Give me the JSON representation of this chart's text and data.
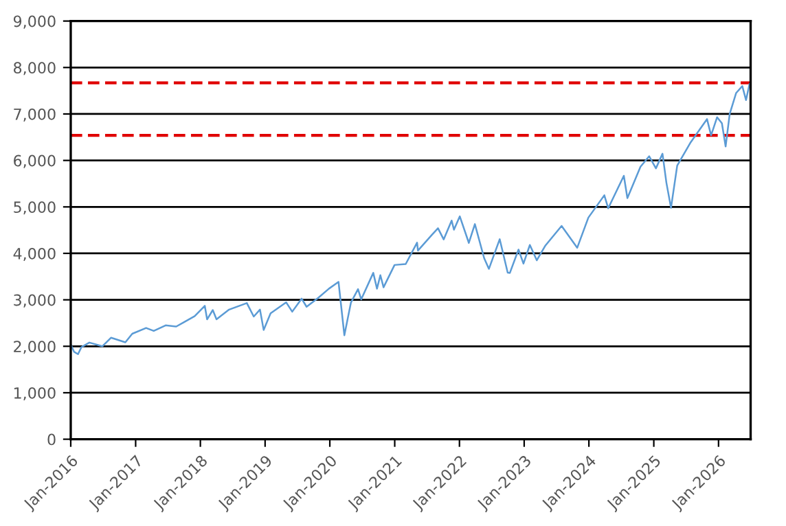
{
  "chart_data": {
    "type": "line",
    "x": [
      "2016-01-01",
      "2016-01-20",
      "2016-02-11",
      "2016-03-01",
      "2016-04-15",
      "2016-06-27",
      "2016-08-15",
      "2016-11-04",
      "2016-12-13",
      "2017-03-01",
      "2017-04-13",
      "2017-06-19",
      "2017-08-18",
      "2017-10-01",
      "2017-11-30",
      "2018-01-26",
      "2018-02-08",
      "2018-03-12",
      "2018-04-02",
      "2018-06-12",
      "2018-09-20",
      "2018-10-29",
      "2018-12-03",
      "2018-12-24",
      "2019-02-01",
      "2019-04-30",
      "2019-06-03",
      "2019-07-26",
      "2019-08-23",
      "2019-10-30",
      "2019-12-27",
      "2020-02-19",
      "2020-03-23",
      "2020-04-29",
      "2020-06-08",
      "2020-06-26",
      "2020-09-02",
      "2020-09-23",
      "2020-10-12",
      "2020-10-30",
      "2020-12-31",
      "2021-03-04",
      "2021-05-07",
      "2021-05-12",
      "2021-07-30",
      "2021-09-02",
      "2021-10-04",
      "2021-11-18",
      "2021-12-01",
      "2022-01-03",
      "2022-02-23",
      "2022-03-29",
      "2022-05-20",
      "2022-06-16",
      "2022-08-16",
      "2022-09-30",
      "2022-10-12",
      "2022-11-30",
      "2022-12-28",
      "2023-02-02",
      "2023-03-13",
      "2023-05-01",
      "2023-07-31",
      "2023-10-27",
      "2023-12-29",
      "2024-03-28",
      "2024-04-19",
      "2024-07-16",
      "2024-08-05",
      "2024-10-18",
      "2024-12-06",
      "2025-01-13",
      "2025-02-19",
      "2025-03-13",
      "2025-04-08",
      "2025-05-13",
      "2025-07-28",
      "2025-10-28",
      "2025-11-20",
      "2025-12-24",
      "2026-01-20",
      "2026-02-10",
      "2026-03-05",
      "2026-04-10",
      "2026-05-15",
      "2026-06-05",
      "2026-06-25"
    ],
    "series": [
      {
        "color": "#5b9bd5",
        "values": [
          2040,
          1880,
          1830,
          1980,
          2080,
          2000,
          2185,
          2085,
          2270,
          2395,
          2330,
          2450,
          2425,
          2520,
          2650,
          2870,
          2580,
          2780,
          2580,
          2790,
          2930,
          2640,
          2790,
          2350,
          2710,
          2945,
          2745,
          3025,
          2850,
          3050,
          3240,
          3386,
          2237,
          2940,
          3230,
          3010,
          3580,
          3240,
          3530,
          3270,
          3750,
          3770,
          4230,
          4060,
          4400,
          4540,
          4300,
          4705,
          4510,
          4796,
          4225,
          4630,
          3900,
          3666,
          4305,
          3585,
          3577,
          4080,
          3780,
          4180,
          3850,
          4170,
          4590,
          4120,
          4770,
          5250,
          4970,
          5670,
          5190,
          5865,
          6090,
          5830,
          6144,
          5520,
          4980,
          5890,
          6390,
          6890,
          6540,
          6930,
          6800,
          6300,
          7000,
          7450,
          7600,
          7300,
          7650
        ]
      }
    ],
    "xlim": [
      "2016-01-01",
      "2026-07-01"
    ],
    "xticks": [
      {
        "value": "2016-01-01",
        "label": "Jan-2016"
      },
      {
        "value": "2017-01-01",
        "label": "Jan-2017"
      },
      {
        "value": "2018-01-01",
        "label": "Jan-2018"
      },
      {
        "value": "2019-01-01",
        "label": "Jan-2019"
      },
      {
        "value": "2020-01-01",
        "label": "Jan-2020"
      },
      {
        "value": "2021-01-01",
        "label": "Jan-2021"
      },
      {
        "value": "2022-01-01",
        "label": "Jan-2022"
      },
      {
        "value": "2023-01-01",
        "label": "Jan-2023"
      },
      {
        "value": "2024-01-01",
        "label": "Jan-2024"
      },
      {
        "value": "2025-01-01",
        "label": "Jan-2025"
      },
      {
        "value": "2026-01-01",
        "label": "Jan-2026"
      }
    ],
    "ylim": [
      0,
      9000
    ],
    "yticks": [
      0,
      {
        "value": 1000,
        "label": "1,000"
      },
      {
        "value": 2000,
        "label": "2,000"
      },
      {
        "value": 3000,
        "label": "3,000"
      },
      {
        "value": 4000,
        "label": "4,000"
      },
      {
        "value": 5000,
        "label": "5,000"
      },
      {
        "value": 6000,
        "label": "6,000"
      },
      {
        "value": 7000,
        "label": "7,000"
      },
      {
        "value": 8000,
        "label": "8,000"
      },
      {
        "value": 9000,
        "label": "9,000"
      }
    ],
    "grid": "y",
    "legend": false,
    "marker": "none",
    "line_style": "solid",
    "ref_lines": [
      {
        "axis": "y",
        "value": 7670,
        "color": "#e00000",
        "line_style": "dashed"
      },
      {
        "axis": "y",
        "value": 6540,
        "color": "#e00000",
        "line_style": "dashed"
      }
    ]
  }
}
